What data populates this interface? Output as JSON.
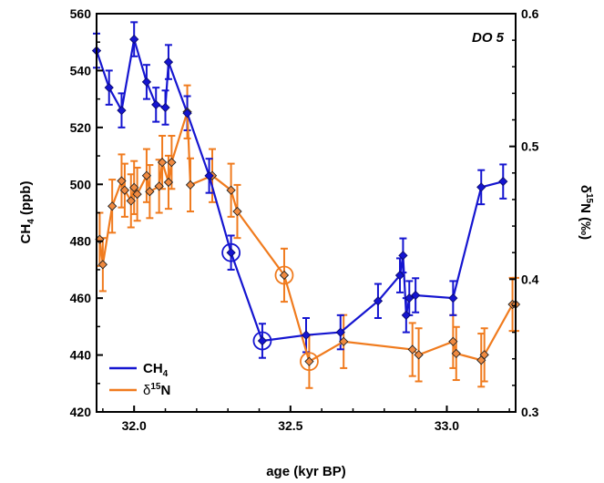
{
  "chart_data": {
    "type": "line",
    "annotation": "DO 5",
    "xlabel": "age (kyr BP)",
    "ylabel_left": {
      "main": "CH",
      "sub": "4",
      "rest": " (ppb)"
    },
    "ylabel_right": {
      "sym": "δ",
      "sup": "15",
      "rest": "N (‰)"
    },
    "xlim": [
      31.88,
      33.22
    ],
    "ylim_left": [
      420,
      560
    ],
    "ylim_right": [
      0.3,
      0.6
    ],
    "x_ticks": [
      {
        "value": 32.0,
        "label": "32.0"
      },
      {
        "value": 32.5,
        "label": "32.5"
      },
      {
        "value": 33.0,
        "label": "33.0"
      }
    ],
    "y_left_ticks": [
      {
        "value": 420,
        "label": "420"
      },
      {
        "value": 440,
        "label": "440"
      },
      {
        "value": 460,
        "label": "460"
      },
      {
        "value": 480,
        "label": "480"
      },
      {
        "value": 500,
        "label": "500"
      },
      {
        "value": 520,
        "label": "520"
      },
      {
        "value": 540,
        "label": "540"
      },
      {
        "value": 560,
        "label": "560"
      }
    ],
    "y_right_ticks": [
      {
        "value": 0.3,
        "label": "0.3"
      },
      {
        "value": 0.4,
        "label": "0.4"
      },
      {
        "value": 0.5,
        "label": "0.5"
      },
      {
        "value": 0.6,
        "label": "0.6"
      }
    ],
    "legend": {
      "position": "bottom-left"
    },
    "colors": {
      "ch4": "#1515d0",
      "d15n_line": "#f07b1e",
      "d15n_fill": "#f08a40",
      "axis": "#000000"
    },
    "series": [
      {
        "name": "CH₄",
        "legend_main": "CH",
        "legend_sub": "4",
        "axis": "left",
        "color": "#1515d0",
        "points": [
          {
            "x": 31.88,
            "y": 547,
            "err": 6
          },
          {
            "x": 31.92,
            "y": 534,
            "err": 6
          },
          {
            "x": 31.96,
            "y": 526,
            "err": 6
          },
          {
            "x": 32.0,
            "y": 551,
            "err": 6
          },
          {
            "x": 32.04,
            "y": 536,
            "err": 6
          },
          {
            "x": 32.07,
            "y": 528,
            "err": 6
          },
          {
            "x": 32.1,
            "y": 527,
            "err": 6
          },
          {
            "x": 32.11,
            "y": 543,
            "err": 6
          },
          {
            "x": 32.17,
            "y": 525,
            "err": 6
          },
          {
            "x": 32.24,
            "y": 503,
            "err": 6
          },
          {
            "x": 32.31,
            "y": 476,
            "err": 6,
            "circled": true
          },
          {
            "x": 32.41,
            "y": 445,
            "err": 6,
            "circled": true
          },
          {
            "x": 32.55,
            "y": 447,
            "err": 6
          },
          {
            "x": 32.66,
            "y": 448,
            "err": 6
          },
          {
            "x": 32.78,
            "y": 459,
            "err": 6
          },
          {
            "x": 32.85,
            "y": 468,
            "err": 6
          },
          {
            "x": 32.86,
            "y": 475,
            "err": 6
          },
          {
            "x": 32.87,
            "y": 454,
            "err": 6
          },
          {
            "x": 32.88,
            "y": 460,
            "err": 6
          },
          {
            "x": 32.9,
            "y": 461,
            "err": 6
          },
          {
            "x": 33.02,
            "y": 460,
            "err": 6
          },
          {
            "x": 33.11,
            "y": 499,
            "err": 6
          },
          {
            "x": 33.18,
            "y": 501,
            "err": 6
          }
        ]
      },
      {
        "name": "δ¹⁵N",
        "legend_sym": "δ",
        "legend_sup": "15",
        "legend_rest": "N",
        "axis": "right",
        "color": "#f07b1e",
        "points": [
          {
            "x": 31.89,
            "y": 0.43,
            "err": 0.02
          },
          {
            "x": 31.9,
            "y": 0.411,
            "err": 0.02
          },
          {
            "x": 31.93,
            "y": 0.455,
            "err": 0.02
          },
          {
            "x": 31.96,
            "y": 0.474,
            "err": 0.02
          },
          {
            "x": 31.97,
            "y": 0.467,
            "err": 0.02
          },
          {
            "x": 31.99,
            "y": 0.459,
            "err": 0.02
          },
          {
            "x": 32.0,
            "y": 0.469,
            "err": 0.02
          },
          {
            "x": 32.01,
            "y": 0.464,
            "err": 0.02
          },
          {
            "x": 32.04,
            "y": 0.478,
            "err": 0.02
          },
          {
            "x": 32.05,
            "y": 0.466,
            "err": 0.02
          },
          {
            "x": 32.08,
            "y": 0.47,
            "err": 0.02
          },
          {
            "x": 32.09,
            "y": 0.488,
            "err": 0.02
          },
          {
            "x": 32.11,
            "y": 0.473,
            "err": 0.02
          },
          {
            "x": 32.12,
            "y": 0.488,
            "err": 0.02
          },
          {
            "x": 32.17,
            "y": 0.526,
            "err": 0.02
          },
          {
            "x": 32.18,
            "y": 0.471,
            "err": 0.02
          },
          {
            "x": 32.25,
            "y": 0.478,
            "err": 0.02
          },
          {
            "x": 32.31,
            "y": 0.467,
            "err": 0.02
          },
          {
            "x": 32.33,
            "y": 0.451,
            "err": 0.02
          },
          {
            "x": 32.48,
            "y": 0.403,
            "err": 0.02,
            "circled": true
          },
          {
            "x": 32.56,
            "y": 0.338,
            "err": 0.02,
            "circled": true
          },
          {
            "x": 32.67,
            "y": 0.353,
            "err": 0.02
          },
          {
            "x": 32.89,
            "y": 0.347,
            "err": 0.02
          },
          {
            "x": 32.91,
            "y": 0.343,
            "err": 0.02
          },
          {
            "x": 33.02,
            "y": 0.353,
            "err": 0.02
          },
          {
            "x": 33.03,
            "y": 0.344,
            "err": 0.02
          },
          {
            "x": 33.11,
            "y": 0.339,
            "err": 0.02
          },
          {
            "x": 33.12,
            "y": 0.343,
            "err": 0.02
          },
          {
            "x": 33.21,
            "y": 0.381,
            "err": 0.02
          },
          {
            "x": 33.22,
            "y": 0.381,
            "err": 0.02
          }
        ]
      }
    ]
  }
}
